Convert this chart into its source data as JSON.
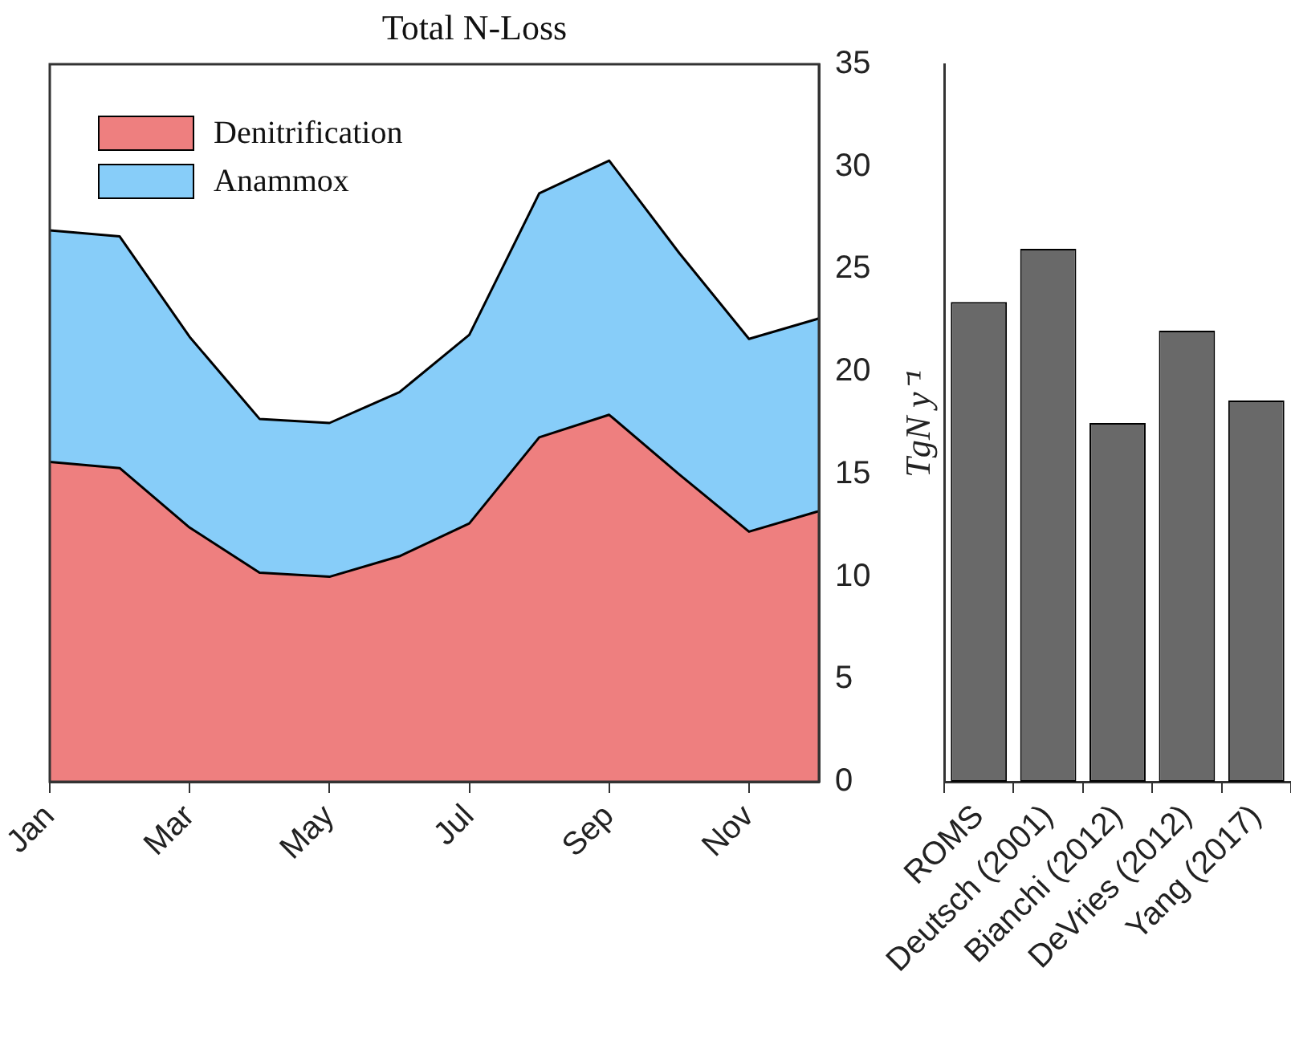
{
  "chart_data": [
    {
      "type": "area",
      "title": "Total N-Loss",
      "ylabel": "TgN y⁻¹",
      "stacked": true,
      "legend": "top left",
      "grid": false,
      "marker": "none",
      "categories": [
        "Jan",
        null,
        "Mar",
        null,
        "May",
        null,
        "Jul",
        null,
        "Sep",
        null,
        "Nov",
        null
      ],
      "series": [
        {
          "name": "Denitrification",
          "color": "#ee7f7f",
          "values": [
            15.6,
            15.3,
            12.4,
            10.2,
            10.0,
            11.0,
            12.6,
            16.8,
            17.9,
            15.0,
            12.2,
            13.2
          ]
        },
        {
          "name": "Anammox",
          "color": "#87cdf9",
          "values": [
            11.3,
            11.3,
            9.3,
            7.5,
            7.5,
            8.0,
            9.2,
            11.9,
            12.4,
            10.8,
            9.4,
            9.4
          ]
        }
      ],
      "ylim": [
        0,
        35
      ],
      "yticks": [
        0,
        5,
        10,
        15,
        20,
        25,
        30,
        35
      ]
    },
    {
      "type": "bar",
      "categories": [
        "ROMS",
        "Deutsch (2001)",
        "Bianchi (2012)",
        "DeVries (2012)",
        "Yang (2017)"
      ],
      "values": [
        23.4,
        26.0,
        17.5,
        22.0,
        18.6
      ],
      "color": "#696969",
      "grid": false,
      "ylim": [
        0,
        35
      ],
      "yticks": [
        0,
        5,
        10,
        15,
        20,
        25,
        30,
        35
      ],
      "tick_labels": "x"
    }
  ]
}
